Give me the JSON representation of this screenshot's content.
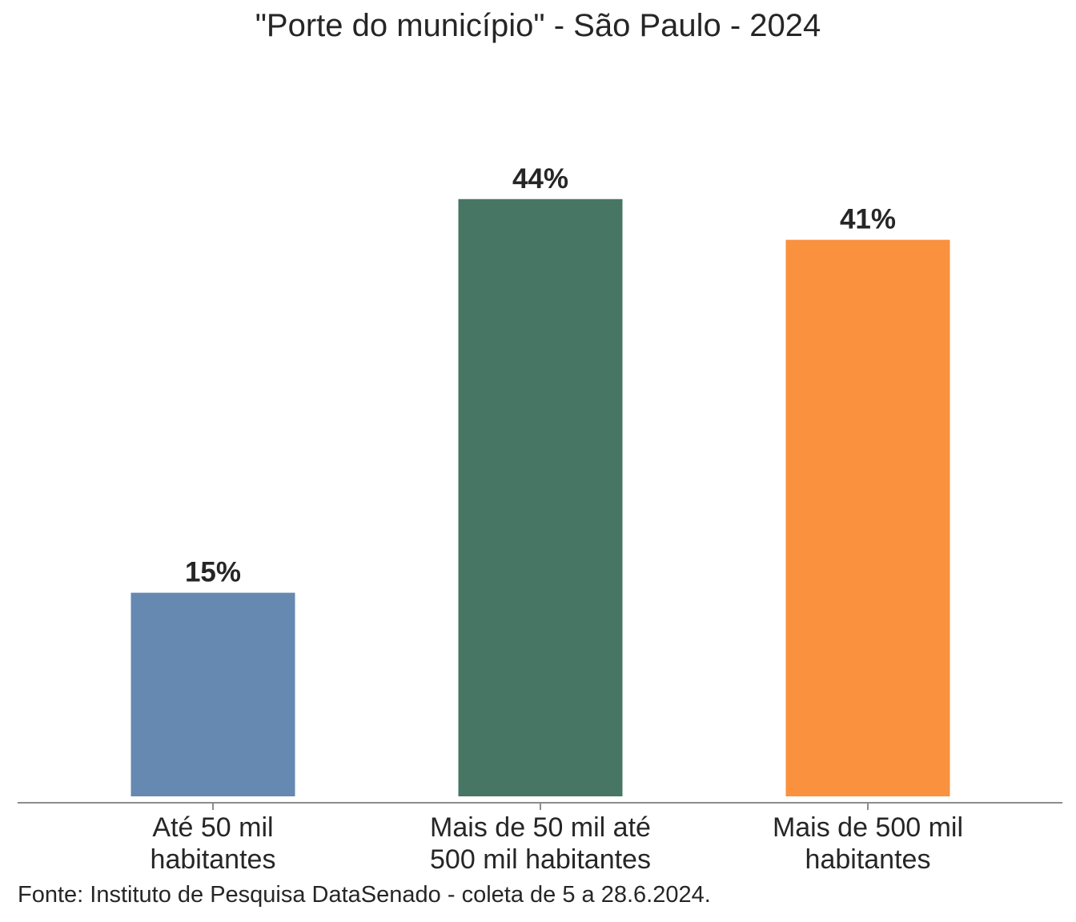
{
  "chart_data": {
    "type": "bar",
    "title": "\"Porte do município\" - São Paulo - 2024",
    "categories": [
      [
        "Até 50 mil",
        "habitantes"
      ],
      [
        "Mais de 50 mil até",
        "500 mil habitantes"
      ],
      [
        "Mais de 500 mil",
        "habitantes"
      ]
    ],
    "values": [
      15,
      44,
      41
    ],
    "value_labels": [
      "15%",
      "44%",
      "41%"
    ],
    "colors": [
      "#6689b1",
      "#477664",
      "#f9913f"
    ],
    "xlabel": "",
    "ylabel": "",
    "ylim": [
      0,
      50
    ],
    "grid": false,
    "legend": "none"
  },
  "source_note": "Fonte: Instituto de Pesquisa DataSenado - coleta de 5 a 28.6.2024."
}
